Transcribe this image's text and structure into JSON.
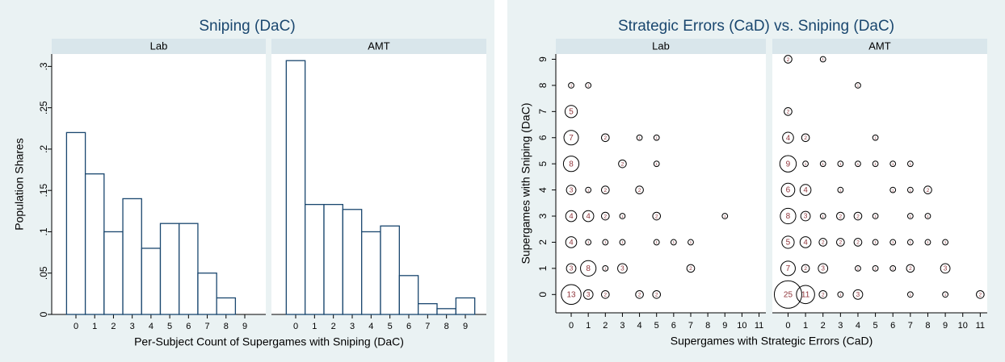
{
  "chart_data": [
    {
      "type": "bar",
      "title": "Sniping (DaC)",
      "x_label": "Per-Subject Count of Supergames with Sniping (DaC)",
      "y_label": "Population Shares",
      "categories": [
        "0",
        "1",
        "2",
        "3",
        "4",
        "5",
        "6",
        "7",
        "8",
        "9"
      ],
      "edgecolor": "#1a476f",
      "series": [
        {
          "name": "Lab",
          "color": "#ffffff",
          "values": [
            0.22,
            0.17,
            0.1,
            0.14,
            0.08,
            0.11,
            0.11,
            0.05,
            0.02,
            0
          ]
        },
        {
          "name": "AMT",
          "color": "#ffffff",
          "values": [
            0.307,
            0.133,
            0.133,
            0.127,
            0.1,
            0.107,
            0.047,
            0.013,
            0.007,
            0.02
          ]
        }
      ],
      "ylim": [
        0,
        0.315
      ],
      "yticks": [
        0,
        {
          "value": 0.05,
          "label": ".05"
        },
        {
          "value": 0.1,
          "label": ".1"
        },
        {
          "value": 0.15,
          "label": ".15"
        },
        {
          "value": 0.2,
          "label": ".2"
        },
        {
          "value": 0.25,
          "label": ".25"
        },
        {
          "value": 0.3,
          "label": ".3"
        }
      ]
    },
    {
      "type": "scatter",
      "title": "Strategic Errors (CaD) vs. Sniping (DaC)",
      "x_label": "Supergames with Strategic Errors (CaD)",
      "y_label": "Supergames with Sniping (DaC)",
      "edgecolor": "#000000",
      "label_color": "#90353b",
      "series": [
        {
          "name": "Lab",
          "color": "#90353b",
          "x": [
            0,
            1,
            0,
            0,
            2,
            4,
            5,
            0,
            3,
            5,
            0,
            1,
            2,
            4,
            0,
            1,
            2,
            3,
            5,
            9,
            0,
            1,
            2,
            3,
            5,
            6,
            7,
            0,
            1,
            2,
            3,
            7,
            0,
            1,
            2,
            4,
            5
          ],
          "values": [
            8,
            8,
            7,
            6,
            6,
            6,
            6,
            5,
            5,
            5,
            4,
            4,
            4,
            4,
            3,
            3,
            3,
            3,
            3,
            3,
            2,
            2,
            2,
            2,
            2,
            2,
            2,
            1,
            1,
            1,
            1,
            1,
            0,
            0,
            0,
            0,
            0
          ],
          "sizes": [
            1,
            1,
            5,
            7,
            2,
            1,
            1,
            8,
            2,
            1,
            3,
            1,
            2,
            2,
            4,
            4,
            2,
            1,
            2,
            1,
            4,
            1,
            1,
            1,
            1,
            1,
            1,
            3,
            8,
            1,
            3,
            2,
            13,
            3,
            2,
            2,
            2
          ]
        },
        {
          "name": "AMT",
          "color": "#90353b",
          "x": [
            0,
            2,
            4,
            0,
            0,
            1,
            5,
            0,
            1,
            2,
            3,
            4,
            5,
            6,
            7,
            0,
            1,
            3,
            6,
            7,
            8,
            0,
            1,
            2,
            3,
            4,
            5,
            7,
            8,
            0,
            1,
            2,
            3,
            4,
            5,
            6,
            7,
            8,
            9,
            0,
            1,
            2,
            4,
            5,
            6,
            7,
            9,
            0,
            1,
            2,
            3,
            4,
            7,
            9,
            11
          ],
          "values": [
            9,
            9,
            8,
            7,
            6,
            6,
            6,
            5,
            5,
            5,
            5,
            5,
            5,
            5,
            5,
            4,
            4,
            4,
            4,
            4,
            4,
            3,
            3,
            3,
            3,
            3,
            3,
            3,
            3,
            2,
            2,
            2,
            2,
            2,
            2,
            2,
            2,
            2,
            2,
            1,
            1,
            1,
            1,
            1,
            1,
            1,
            1,
            0,
            0,
            0,
            0,
            0,
            0,
            0,
            0
          ],
          "sizes": [
            2,
            1,
            1,
            2,
            4,
            2,
            1,
            9,
            1,
            1,
            1,
            1,
            1,
            1,
            1,
            6,
            4,
            1,
            1,
            1,
            2,
            8,
            3,
            1,
            2,
            2,
            1,
            1,
            1,
            5,
            4,
            2,
            2,
            2,
            1,
            1,
            1,
            1,
            1,
            7,
            2,
            3,
            1,
            1,
            1,
            2,
            3,
            25,
            11,
            2,
            1,
            3,
            1,
            1,
            2
          ]
        }
      ],
      "xlim": [
        -0.9,
        11.4
      ],
      "ylim": [
        -0.7,
        9.2
      ],
      "xticks": [
        0,
        1,
        2,
        3,
        4,
        5,
        6,
        7,
        8,
        9,
        10,
        11
      ],
      "yticks": [
        0,
        1,
        2,
        3,
        4,
        5,
        6,
        7,
        8,
        9
      ]
    }
  ]
}
